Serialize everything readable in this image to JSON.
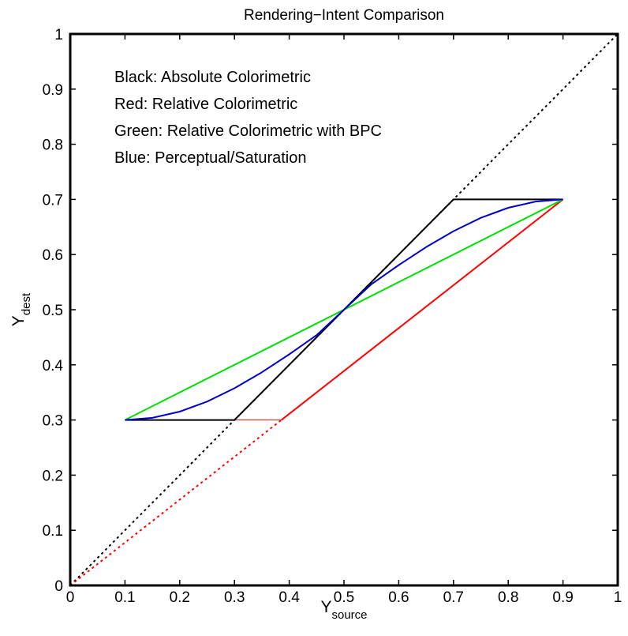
{
  "chart_data": {
    "type": "line",
    "title": "Rendering−Intent Comparison",
    "xlabel": {
      "main": "Y",
      "sub": "source"
    },
    "ylabel": {
      "main": "Y",
      "sub": "dest"
    },
    "xlim": [
      0,
      1
    ],
    "ylim": [
      0,
      1
    ],
    "grid": false,
    "xticks": [
      0,
      0.1,
      0.2,
      0.3,
      0.4,
      0.5,
      0.6,
      0.7,
      0.8,
      0.9,
      1
    ],
    "yticks": [
      0,
      0.1,
      0.2,
      0.3,
      0.4,
      0.5,
      0.6,
      0.7,
      0.8,
      0.9,
      1
    ],
    "xtick_labels": [
      "0",
      "0.1",
      "0.2",
      "0.3",
      "0.4",
      "0.5",
      "0.6",
      "0.7",
      "0.8",
      "0.9",
      "1"
    ],
    "ytick_labels": [
      "0",
      "0.1",
      "0.2",
      "0.3",
      "0.4",
      "0.5",
      "0.6",
      "0.7",
      "0.8",
      "0.9",
      "1"
    ],
    "annotations": [
      "Black:  Absolute Colorimetric",
      "Red:  Relative Colorimetric",
      "Green:  Relative Colorimetric with BPC",
      "Blue:  Perceptual/Saturation"
    ],
    "series": [
      {
        "key": "identity-dotted",
        "color": "#000000",
        "style": "dotted",
        "points": [
          [
            0,
            0
          ],
          [
            1,
            1
          ]
        ]
      },
      {
        "key": "red-dotted",
        "color": "#ff0000",
        "style": "dotted",
        "points": [
          [
            0,
            0
          ],
          [
            0.3857,
            0.3
          ]
        ]
      },
      {
        "key": "red-thin",
        "color": "#ff0000",
        "style": "thin",
        "points": [
          [
            0.3,
            0.3
          ],
          [
            0.3857,
            0.3
          ]
        ]
      },
      {
        "key": "absolute-colorimetric",
        "color": "#000000",
        "style": "solid",
        "points": [
          [
            0.1,
            0.3
          ],
          [
            0.3,
            0.3
          ],
          [
            0.7,
            0.7
          ],
          [
            0.9,
            0.7
          ]
        ]
      },
      {
        "key": "relative-colorimetric",
        "color": "#ff0000",
        "style": "solid",
        "points": [
          [
            0.3857,
            0.3
          ],
          [
            0.9,
            0.7
          ]
        ]
      },
      {
        "key": "relative-colorimetric-bpc",
        "color": "#00e000",
        "style": "solid",
        "points": [
          [
            0.1,
            0.3
          ],
          [
            0.9,
            0.7
          ]
        ]
      },
      {
        "key": "perceptual-saturation",
        "color": "#0000cc",
        "style": "solid",
        "points": [
          [
            0.1,
            0.3
          ],
          [
            0.15,
            0.3039
          ],
          [
            0.2,
            0.3152
          ],
          [
            0.25,
            0.3334
          ],
          [
            0.3,
            0.3576
          ],
          [
            0.35,
            0.3865
          ],
          [
            0.4,
            0.4191
          ],
          [
            0.45,
            0.4538
          ],
          [
            0.5,
            0.5
          ],
          [
            0.55,
            0.5462
          ],
          [
            0.6,
            0.5809
          ],
          [
            0.65,
            0.6135
          ],
          [
            0.7,
            0.6424
          ],
          [
            0.75,
            0.6666
          ],
          [
            0.8,
            0.6848
          ],
          [
            0.85,
            0.6961
          ],
          [
            0.9,
            0.7
          ]
        ]
      }
    ]
  }
}
